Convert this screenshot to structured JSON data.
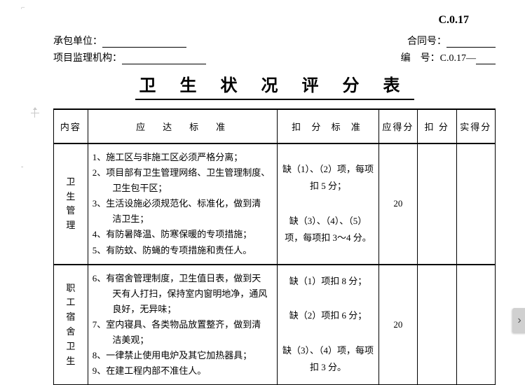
{
  "pageCode": "C.0.17",
  "header": {
    "contractor_label": "承包单位：",
    "supervisor_label": "项目监理机构：",
    "contract_no_label": "合同号：",
    "serial_label": "编　号：",
    "serial_value": "C.0.17—"
  },
  "title": "卫 生 状 况 评 分 表",
  "columns": {
    "c1": "内容",
    "c2": "应　达　标　准",
    "c3": "扣 分 标 准",
    "c4": "应得分",
    "c5": "扣 分",
    "c6": "实得分"
  },
  "rows": [
    {
      "category": [
        "卫",
        "生",
        "管",
        "理"
      ],
      "standards": [
        "1、施工区与非施工区必须严格分离；",
        "2、项目部有卫生管理网络、卫生管理制度、",
        "　　卫生包干区；",
        "3、生活设施必须规范化、标准化，做到清",
        "　　洁卫生；",
        "4、有防暑降温、防寒保暖的专项措施；",
        "5、有防蚊、防蝇的专项措施和责任人。"
      ],
      "deduction": "缺（1）、（2）项，每项扣 5 分；\n\n缺（3）、（4）、（5）项，每项扣 3～4 分。",
      "score": "20"
    },
    {
      "category": [
        "职",
        "工",
        "宿",
        "舍",
        "卫",
        "生"
      ],
      "standards": [
        "6、有宿舍管理制度，卫生值日表，做到天",
        "　　天有人打扫，保持室内窗明地净，通风",
        "　　良好，无异味；",
        "7、室内寝具、各类物品放置整齐，做到清",
        "　　洁美观；",
        "8、一律禁止使用电炉及其它加热器具；",
        "9、在建工程内部不准住人。"
      ],
      "deduction": "缺（1）项扣 8 分；\n\n缺（2）项扣 6 分；\n\n缺（3）、（4）项，每项扣 3 分。",
      "score": "20"
    }
  ],
  "tab_icon": "›"
}
